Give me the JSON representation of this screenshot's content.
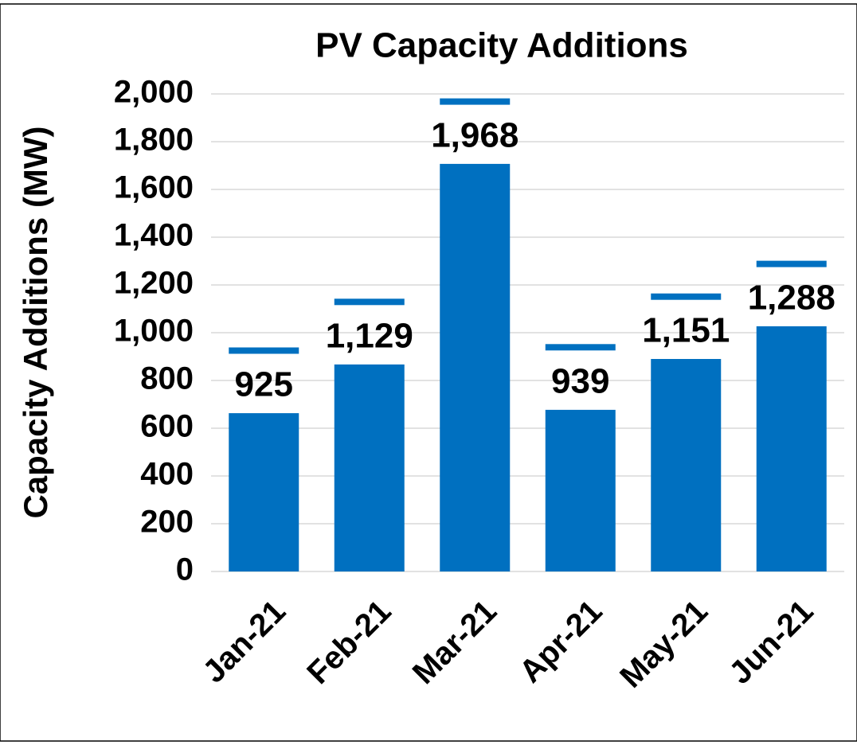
{
  "chart_data": {
    "type": "bar",
    "title": "PV Capacity Additions",
    "y_label": "Capacity Additions (MW)",
    "categories": [
      "Jan-21",
      "Feb-21",
      "Mar-21",
      "Apr-21",
      "May-21",
      "Jun-21"
    ],
    "series": [
      {
        "color": "#0070c0",
        "values": [
          663,
          867,
          1707,
          677,
          890,
          1027
        ]
      },
      {
        "color": "#0070c0",
        "mark": "dash",
        "values": [
          925,
          1129,
          1968,
          939,
          1151,
          1288
        ],
        "value_labels": [
          "925",
          "1,129",
          "1,968",
          "939",
          "1,151",
          "1,288"
        ]
      }
    ],
    "ylim": [
      0,
      2000
    ],
    "yticks": [
      0,
      200,
      400,
      600,
      800,
      {
        "value": 1000,
        "label": "1,000"
      },
      {
        "value": 1200,
        "label": "1,200"
      },
      {
        "value": 1400,
        "label": "1,400"
      },
      {
        "value": 1600,
        "label": "1,600"
      },
      {
        "value": 1800,
        "label": "1,800"
      },
      {
        "value": 2000,
        "label": "2,000"
      }
    ],
    "grid": true
  }
}
